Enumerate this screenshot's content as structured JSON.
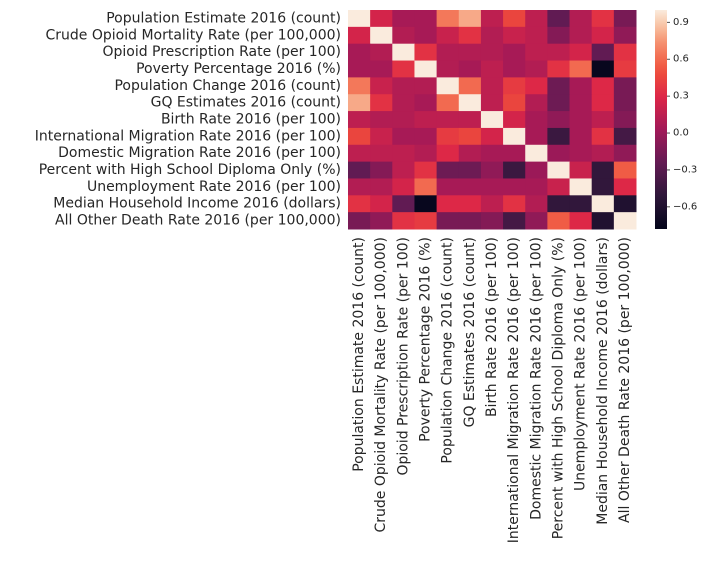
{
  "chart_data": {
    "type": "heatmap",
    "title": "",
    "xlabel": "",
    "ylabel": "",
    "row_labels": [
      "Population Estimate 2016 (count)",
      "Crude Opioid Mortality Rate (per 100,000)",
      "Opioid Prescription Rate (per 100)",
      "Poverty Percentage 2016 (%)",
      "Population Change 2016 (count)",
      "GQ Estimates 2016 (count)",
      "Birth Rate 2016 (per 100)",
      "International Migration Rate 2016 (per 100)",
      "Domestic Migration Rate 2016 (per 100)",
      "Percent with High School Diploma Only (%)",
      "Unemployment Rate 2016 (per 100)",
      "Median Household Income 2016 (dollars)",
      "All Other Death Rate 2016 (per 100,000)"
    ],
    "col_labels": [
      "Population Estimate 2016 (count)",
      "Crude Opioid Mortality Rate (per 100,000)",
      "Opioid Prescription Rate (per 100)",
      "Poverty Percentage 2016 (%)",
      "Population Change 2016 (count)",
      "GQ Estimates 2016 (count)",
      "Birth Rate 2016 (per 100)",
      "International Migration Rate 2016 (per 100)",
      "Domestic Migration Rate 2016 (per 100)",
      "Percent with High School Diploma Only (%)",
      "Unemployment Rate 2016 (per 100)",
      "Median Household Income 2016 (dollars)",
      "All Other Death Rate 2016 (per 100,000)"
    ],
    "values": [
      [
        1.0,
        0.25,
        0.05,
        0.05,
        0.65,
        0.8,
        0.15,
        0.45,
        0.15,
        -0.25,
        0.1,
        0.35,
        -0.15
      ],
      [
        0.25,
        1.0,
        0.1,
        0.05,
        0.2,
        0.35,
        0.1,
        0.2,
        0.15,
        -0.1,
        0.1,
        0.25,
        -0.05
      ],
      [
        0.05,
        0.1,
        1.0,
        0.35,
        0.1,
        0.1,
        0.1,
        0.05,
        0.15,
        0.15,
        0.25,
        -0.25,
        0.35
      ],
      [
        0.05,
        0.05,
        0.35,
        1.0,
        0.1,
        0.05,
        0.15,
        0.05,
        0.1,
        0.35,
        0.6,
        -0.75,
        0.4
      ],
      [
        0.65,
        0.2,
        0.1,
        0.1,
        1.0,
        0.6,
        0.15,
        0.4,
        0.3,
        -0.2,
        0.05,
        0.3,
        -0.15
      ],
      [
        0.8,
        0.35,
        0.1,
        0.05,
        0.6,
        1.0,
        0.15,
        0.45,
        0.1,
        -0.2,
        0.05,
        0.3,
        -0.15
      ],
      [
        0.15,
        0.1,
        0.1,
        0.15,
        0.15,
        0.15,
        1.0,
        0.25,
        0.05,
        -0.05,
        0.05,
        0.15,
        -0.1
      ],
      [
        0.45,
        0.2,
        0.05,
        0.05,
        0.4,
        0.45,
        0.25,
        1.0,
        0.05,
        -0.45,
        0.05,
        0.35,
        -0.4
      ],
      [
        0.15,
        0.15,
        0.15,
        0.1,
        0.3,
        0.1,
        0.05,
        0.05,
        1.0,
        0.0,
        0.05,
        0.1,
        -0.05
      ],
      [
        -0.25,
        -0.1,
        0.15,
        0.35,
        -0.2,
        -0.2,
        -0.05,
        -0.45,
        0.0,
        1.0,
        0.2,
        -0.5,
        0.55
      ],
      [
        0.1,
        0.1,
        0.25,
        0.6,
        0.05,
        0.05,
        0.05,
        0.05,
        0.05,
        0.2,
        1.0,
        -0.5,
        0.3
      ],
      [
        0.35,
        0.25,
        -0.25,
        -0.75,
        0.3,
        0.3,
        0.15,
        0.35,
        0.1,
        -0.5,
        -0.5,
        1.0,
        -0.6
      ],
      [
        -0.15,
        -0.05,
        0.35,
        0.4,
        -0.15,
        -0.15,
        -0.1,
        -0.4,
        -0.05,
        0.55,
        0.3,
        -0.6,
        1.0
      ]
    ],
    "vmin": -0.78,
    "vmax": 1.0,
    "colormap": "rocket",
    "grid": false,
    "colorbar": {
      "position": "right",
      "ticks": [
        0.9,
        0.6,
        0.3,
        0.0,
        -0.3,
        -0.6
      ],
      "tick_labels": [
        "0.9",
        "0.6",
        "0.3",
        "0.0",
        "−0.3",
        "−0.6"
      ]
    }
  }
}
